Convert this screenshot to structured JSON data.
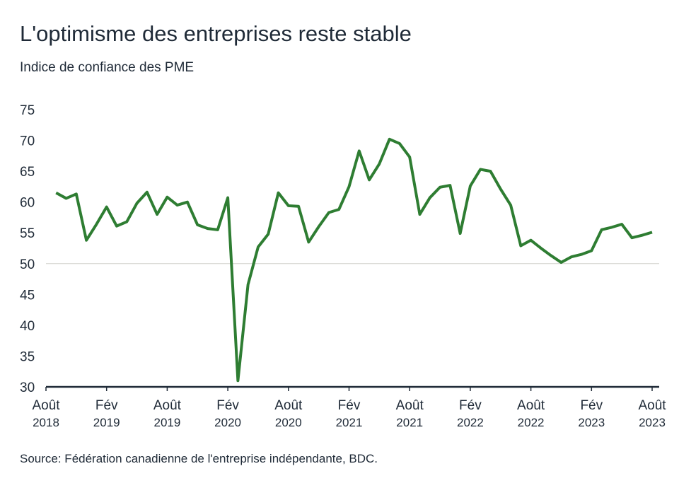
{
  "chart_data": {
    "type": "line",
    "title": "L'optimisme des entreprises reste stable",
    "subtitle": "Indice de confiance des PME",
    "source": "Source: Fédération canadienne de l'entreprise indépendante, BDC.",
    "x": [
      "2018-09",
      "2018-10",
      "2018-11",
      "2018-12",
      "2019-01",
      "2019-02",
      "2019-03",
      "2019-04",
      "2019-05",
      "2019-06",
      "2019-07",
      "2019-08",
      "2019-09",
      "2019-10",
      "2019-11",
      "2019-12",
      "2020-01",
      "2020-02",
      "2020-03",
      "2020-04",
      "2020-05",
      "2020-06",
      "2020-07",
      "2020-08",
      "2020-09",
      "2020-10",
      "2020-11",
      "2020-12",
      "2021-01",
      "2021-02",
      "2021-03",
      "2021-04",
      "2021-05",
      "2021-06",
      "2021-07",
      "2021-08",
      "2021-09",
      "2021-10",
      "2021-11",
      "2021-12",
      "2022-01",
      "2022-02",
      "2022-03",
      "2022-04",
      "2022-05",
      "2022-06",
      "2022-07",
      "2022-08",
      "2022-09",
      "2022-10",
      "2022-11",
      "2022-12",
      "2023-01",
      "2023-02",
      "2023-03",
      "2023-04",
      "2023-05",
      "2023-06",
      "2023-07",
      "2023-08"
    ],
    "series": [
      {
        "name": "Indice de confiance des PME",
        "color": "#2e7d32",
        "values": [
          61.5,
          60.6,
          61.3,
          53.8,
          56.4,
          59.2,
          56.1,
          56.8,
          59.8,
          61.6,
          58.0,
          60.8,
          59.5,
          60.0,
          56.3,
          55.7,
          55.5,
          60.7,
          31.0,
          46.6,
          52.7,
          54.8,
          61.5,
          59.4,
          59.3,
          53.5,
          56.0,
          58.3,
          58.8,
          62.5,
          68.3,
          63.6,
          66.2,
          70.2,
          69.5,
          67.3,
          58.0,
          60.7,
          62.4,
          62.7,
          54.9,
          62.6,
          65.3,
          65.0,
          62.1,
          59.5,
          52.9,
          53.8,
          52.5,
          51.3,
          50.2,
          51.1,
          51.5,
          52.1,
          55.5,
          55.9,
          56.4,
          54.2,
          54.6,
          55.1
        ]
      }
    ],
    "xlim": [
      "2018-08",
      "2023-08"
    ],
    "xticks": [
      {
        "value": "2018-08",
        "label": "Août 2018"
      },
      {
        "value": "2019-02",
        "label": "Fév 2019"
      },
      {
        "value": "2019-08",
        "label": "Août 2019"
      },
      {
        "value": "2020-02",
        "label": "Fév 2020"
      },
      {
        "value": "2020-08",
        "label": "Août 2020"
      },
      {
        "value": "2021-02",
        "label": "Fév 2021"
      },
      {
        "value": "2021-08",
        "label": "Août 2021"
      },
      {
        "value": "2022-02",
        "label": "Fév 2022"
      },
      {
        "value": "2022-08",
        "label": "Août 2022"
      },
      {
        "value": "2023-02",
        "label": "Fév 2023"
      },
      {
        "value": "2023-08",
        "label": "Août 2023"
      }
    ],
    "ylim": [
      30,
      75
    ],
    "yticks": [
      30,
      35,
      40,
      45,
      50,
      55,
      60,
      65,
      70,
      75
    ],
    "reference_line": 50
  }
}
